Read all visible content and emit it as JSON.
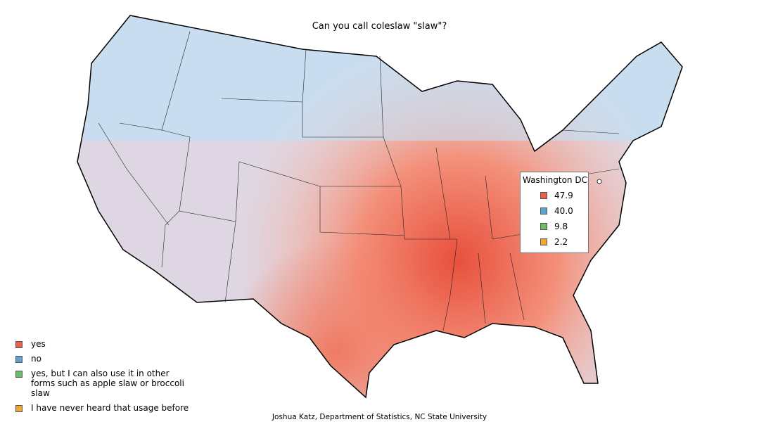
{
  "title": "Can you call coleslaw \"slaw\"?",
  "legend": [
    {
      "label": "yes",
      "color": "#e8604c"
    },
    {
      "label": "no",
      "color": "#5ba3cf"
    },
    {
      "label": "yes, but I can also use it in other forms such as apple slaw or broccoli slaw",
      "color": "#6bbf6b"
    },
    {
      "label": "I have never heard that usage before",
      "color": "#f0a830"
    }
  ],
  "popup": {
    "place": "Washington DC",
    "values": [
      "47.9",
      "40.0",
      "9.8",
      "2.2"
    ]
  },
  "credit": "Joshua Katz, Department of Statistics, NC State University"
}
